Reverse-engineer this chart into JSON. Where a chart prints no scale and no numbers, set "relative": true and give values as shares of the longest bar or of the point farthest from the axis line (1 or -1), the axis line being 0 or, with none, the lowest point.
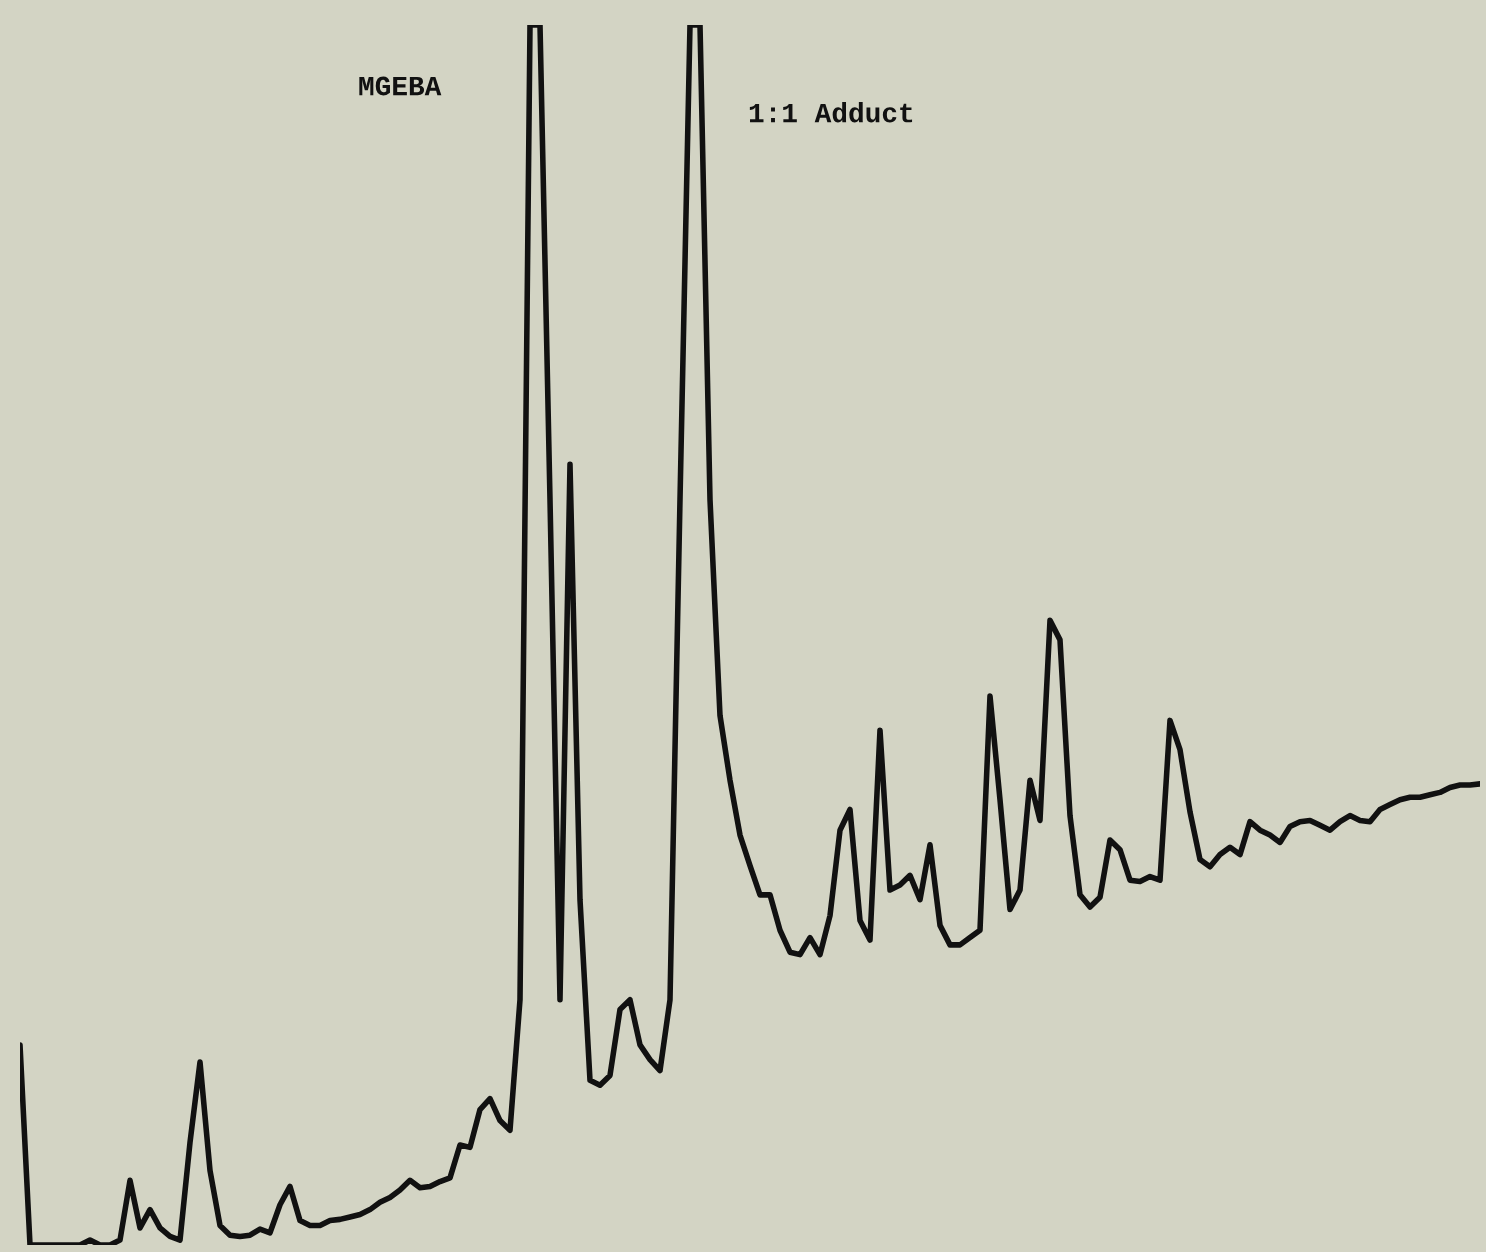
{
  "chart_data": {
    "type": "line",
    "relative": true,
    "marker": "none",
    "line_style": "solid",
    "annotations": [
      "MGEBA",
      "1:1 Adduct"
    ],
    "categories": [
      null,
      null,
      null,
      null,
      null,
      null,
      null,
      null,
      null,
      null,
      null,
      null,
      null,
      null,
      null,
      null,
      null,
      null,
      null,
      null,
      null,
      null,
      null,
      null,
      null,
      null,
      null,
      null,
      null,
      null,
      null,
      null,
      null,
      null,
      null,
      null,
      null,
      null,
      null,
      null,
      null,
      null,
      null,
      null,
      null,
      null,
      null,
      null,
      null,
      null,
      null,
      null,
      null,
      null,
      null,
      null,
      null,
      null,
      null,
      null,
      null,
      null,
      null,
      null,
      null,
      null,
      null,
      null,
      null,
      null,
      null,
      null,
      null,
      null,
      null,
      null,
      null,
      null,
      null,
      null,
      null,
      null,
      null,
      null,
      null,
      null,
      null,
      null,
      null,
      null,
      null,
      null,
      null,
      null,
      null,
      null,
      null,
      null,
      null,
      null,
      null,
      null,
      null,
      null,
      null,
      null,
      null,
      null,
      null,
      null,
      null,
      null,
      null,
      null,
      null,
      null,
      null,
      null,
      null,
      null,
      null,
      null,
      null,
      null,
      null,
      null,
      null,
      null,
      null,
      null,
      null,
      null,
      null,
      null,
      null,
      null,
      null,
      null,
      null,
      null,
      null,
      null,
      null,
      null,
      null,
      null,
      null
    ],
    "series": [
      {
        "color": "#111111",
        "values": [
          0.164,
          0.0,
          0.0,
          0.0,
          0.0,
          0.0,
          0.0,
          0.004,
          0.0,
          0.0,
          0.004,
          0.053,
          0.014,
          0.029,
          0.014,
          0.007,
          0.004,
          0.084,
          0.15,
          0.061,
          0.016,
          0.008,
          0.007,
          0.008,
          0.013,
          0.01,
          0.033,
          0.048,
          0.02,
          0.016,
          0.016,
          0.02,
          0.021,
          0.023,
          0.025,
          0.029,
          0.035,
          0.039,
          0.045,
          0.053,
          0.047,
          0.048,
          0.052,
          0.055,
          0.082,
          0.08,
          0.111,
          0.12,
          0.102,
          0.094,
          0.201,
          1.0,
          1.0,
          0.611,
          0.201,
          0.64,
          0.283,
          0.135,
          0.131,
          0.139,
          0.193,
          0.201,
          0.164,
          0.152,
          0.143,
          0.201,
          0.611,
          1.0,
          1.0,
          0.611,
          0.434,
          0.381,
          0.336,
          0.311,
          0.287,
          0.287,
          0.258,
          0.24,
          0.238,
          0.252,
          0.238,
          0.27,
          0.34,
          0.357,
          0.266,
          0.25,
          0.422,
          0.291,
          0.295,
          0.303,
          0.283,
          0.328,
          0.262,
          0.246,
          0.246,
          0.252,
          0.258,
          0.45,
          0.365,
          0.275,
          0.291,
          0.381,
          0.348,
          0.512,
          0.496,
          0.352,
          0.287,
          0.277,
          0.285,
          0.332,
          0.324,
          0.299,
          0.298,
          0.302,
          0.299,
          0.43,
          0.406,
          0.355,
          0.316,
          0.31,
          0.32,
          0.326,
          0.32,
          0.347,
          0.34,
          0.336,
          0.33,
          0.343,
          0.347,
          0.348,
          0.344,
          0.34,
          0.347,
          0.352,
          0.348,
          0.347,
          0.357,
          0.361,
          0.365,
          0.367,
          0.367,
          0.369,
          0.371,
          0.375,
          0.377,
          0.377,
          0.378
        ]
      }
    ]
  }
}
